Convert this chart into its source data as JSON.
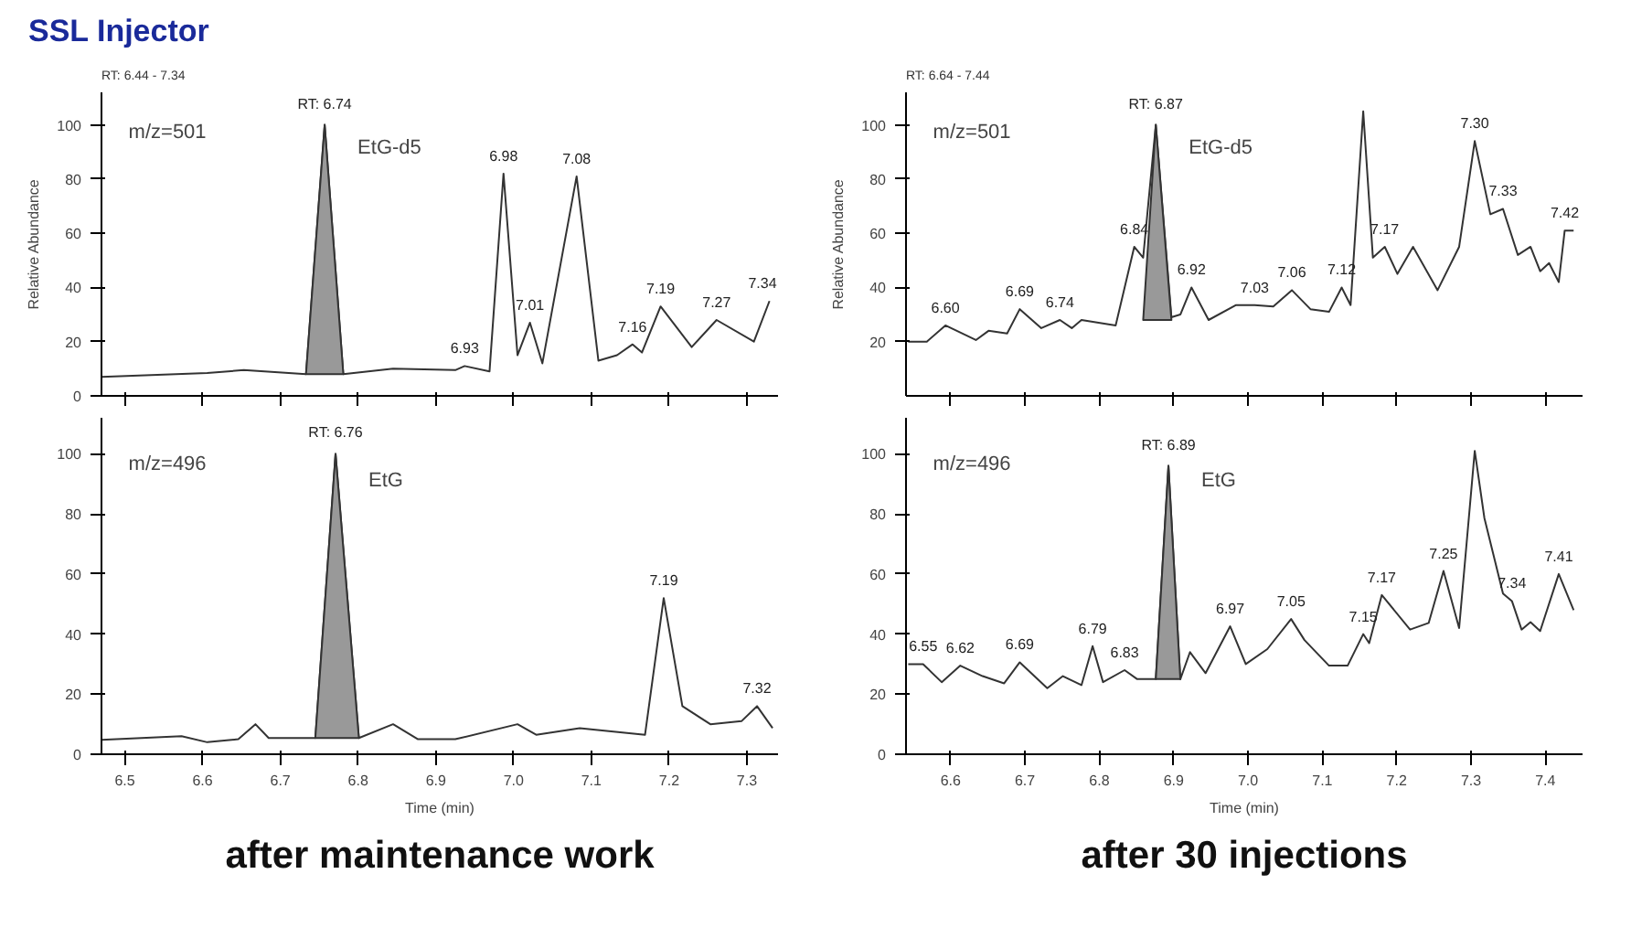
{
  "chart_data": [
    {
      "type": "line",
      "title": "SSL Injector",
      "subtitle": "RT: 6.44 - 7.34",
      "ylabel": "Relative Abundance",
      "xlim": [
        6.47,
        7.34
      ],
      "ylim": [
        0,
        112
      ],
      "xticks": [
        6.5,
        6.6,
        6.7,
        6.8,
        6.9,
        7.0,
        7.1,
        7.2,
        7.3
      ],
      "yticks": [
        0,
        20,
        40,
        60,
        80,
        100
      ],
      "tick_labels": "y",
      "grid": false,
      "annotations": [
        "m/z=501",
        "EtG-d5",
        {
          "text": "RT: 6.74",
          "x": 6.757,
          "y": 100
        },
        {
          "text": "6.93",
          "x": 6.937,
          "y": 11
        },
        {
          "text": "6.98",
          "x": 6.987,
          "y": 82
        },
        {
          "text": "7.01",
          "x": 7.021,
          "y": 27
        },
        {
          "text": "7.08",
          "x": 7.081,
          "y": 81
        },
        {
          "text": "7.16",
          "x": 7.153,
          "y": 19
        },
        {
          "text": "7.19",
          "x": 7.189,
          "y": 33
        },
        {
          "text": "7.27",
          "x": 7.261,
          "y": 28
        },
        {
          "text": "7.34",
          "x": 7.32,
          "y": 35
        }
      ],
      "series": [
        {
          "color": "#333333",
          "x": [
            6.47,
            6.606,
            6.653,
            6.733,
            6.757,
            6.781,
            6.845,
            6.925,
            6.937,
            6.969,
            6.987,
            7.005,
            7.021,
            7.037,
            7.081,
            7.109,
            7.133,
            7.153,
            7.165,
            7.189,
            7.229,
            7.261,
            7.309,
            7.329
          ],
          "values": [
            7,
            8.4,
            9.5,
            8,
            100,
            8,
            10,
            9.5,
            11,
            9,
            82,
            15,
            27,
            12,
            81,
            13,
            15,
            19,
            16,
            33,
            18,
            28,
            20,
            35
          ]
        },
        {
          "type": "area",
          "color": "#999999",
          "x": [
            6.733,
            6.757,
            6.781
          ],
          "values": [
            8,
            100,
            8
          ]
        }
      ]
    },
    {
      "type": "line",
      "subtitle": "RT: 6.64 - 7.44",
      "ylabel": "Relative Abundance",
      "xlim": [
        6.54,
        7.45
      ],
      "ylim": [
        0,
        112
      ],
      "xticks": [
        6.6,
        6.7,
        6.8,
        6.9,
        7.0,
        7.1,
        7.2,
        7.3,
        7.4
      ],
      "yticks": [
        20,
        40,
        60,
        80,
        100
      ],
      "tick_labels": "y",
      "grid": false,
      "annotations": [
        "m/z=501",
        "EtG-d5",
        {
          "text": "RT: 6.87",
          "x": 6.876,
          "y": 100
        },
        {
          "text": "6.60",
          "x": 6.593,
          "y": 26
        },
        {
          "text": "6.69",
          "x": 6.693,
          "y": 32
        },
        {
          "text": "6.74",
          "x": 6.747,
          "y": 28
        },
        {
          "text": "6.84",
          "x": 6.847,
          "y": 55
        },
        {
          "text": "6.92",
          "x": 6.924,
          "y": 40
        },
        {
          "text": "7.03",
          "x": 7.009,
          "y": 33.5
        },
        {
          "text": "7.06",
          "x": 7.059,
          "y": 39
        },
        {
          "text": "7.12",
          "x": 7.126,
          "y": 40
        },
        {
          "text": "7.17",
          "x": 7.184,
          "y": 55
        },
        {
          "text": "7.30",
          "x": 7.305,
          "y": 94
        },
        {
          "text": "7.33",
          "x": 7.343,
          "y": 69
        },
        {
          "text": "7.42",
          "x": 7.426,
          "y": 61
        }
      ],
      "series": [
        {
          "color": "#333333",
          "x": [
            6.543,
            6.568,
            6.593,
            6.634,
            6.651,
            6.676,
            6.693,
            6.722,
            6.747,
            6.763,
            6.776,
            6.822,
            6.847,
            6.859,
            6.876,
            6.897,
            6.909,
            6.924,
            6.947,
            6.984,
            7.009,
            7.034,
            7.059,
            7.084,
            7.109,
            7.126,
            7.138,
            7.155,
            7.168,
            7.184,
            7.201,
            7.222,
            7.255,
            7.284,
            7.305,
            7.326,
            7.343,
            7.363,
            7.38,
            7.393,
            7.405,
            7.418,
            7.426,
            7.438
          ],
          "values": [
            20,
            20,
            26,
            20.6,
            24,
            23,
            32,
            25,
            28,
            25,
            28,
            26,
            55,
            51,
            100,
            29,
            30,
            40,
            28,
            33.5,
            33.5,
            33,
            39,
            32,
            31,
            40,
            33.5,
            105,
            51,
            55,
            45,
            55,
            39,
            55,
            94,
            67,
            69,
            52,
            55,
            46,
            49,
            42,
            61,
            61
          ]
        },
        {
          "type": "area",
          "color": "#999999",
          "x": [
            6.859,
            6.876,
            6.897
          ],
          "values": [
            28,
            100,
            28
          ]
        }
      ]
    },
    {
      "type": "line",
      "xlabel": "Time (min)",
      "xlim": [
        6.47,
        7.34
      ],
      "ylim": [
        0,
        112
      ],
      "xticks": [
        6.5,
        6.6,
        6.7,
        6.8,
        6.9,
        {
          "value": 7.0,
          "label": "7.0"
        },
        7.1,
        7.2,
        7.3
      ],
      "yticks": [
        0,
        20,
        40,
        60,
        80,
        100
      ],
      "grid": false,
      "annotations": [
        "m/z=496",
        "EtG",
        "after maintenance work",
        {
          "text": "RT: 6.76",
          "x": 6.771,
          "y": 100
        },
        {
          "text": "7.19",
          "x": 7.193,
          "y": 52
        },
        {
          "text": "7.32",
          "x": 7.313,
          "y": 16
        }
      ],
      "series": [
        {
          "color": "#333333",
          "x": [
            6.47,
            6.573,
            6.606,
            6.646,
            6.668,
            6.685,
            6.745,
            6.771,
            6.801,
            6.845,
            6.877,
            6.925,
            7.005,
            7.029,
            7.085,
            7.169,
            7.193,
            7.217,
            7.253,
            7.293,
            7.313,
            7.333
          ],
          "values": [
            4.8,
            6,
            4,
            5,
            10,
            5.4,
            5.4,
            100,
            5.4,
            10,
            5,
            5,
            10,
            6.5,
            8.7,
            6.5,
            52,
            16,
            10,
            11,
            16,
            8.7
          ]
        },
        {
          "type": "area",
          "color": "#999999",
          "x": [
            6.745,
            6.771,
            6.801
          ],
          "values": [
            5.4,
            100,
            5.4
          ]
        }
      ]
    },
    {
      "type": "line",
      "xlabel": "Time (min)",
      "xlim": [
        6.54,
        7.45
      ],
      "ylim": [
        0,
        112
      ],
      "xticks": [
        6.6,
        6.7,
        6.8,
        6.9,
        {
          "value": 7.0,
          "label": "7.0"
        },
        7.1,
        7.2,
        7.3,
        7.4
      ],
      "yticks": [
        0,
        20,
        40,
        60,
        80,
        100
      ],
      "grid": false,
      "annotations": [
        "m/z=496",
        "EtG",
        "after 30 injections",
        {
          "text": "RT: 6.89",
          "x": 6.893,
          "y": 96
        },
        {
          "text": "6.55",
          "x": 6.563,
          "y": 30
        },
        {
          "text": "6.62",
          "x": 6.613,
          "y": 29.5
        },
        {
          "text": "6.69",
          "x": 6.693,
          "y": 30.6
        },
        {
          "text": "6.79",
          "x": 6.791,
          "y": 36
        },
        {
          "text": "6.83",
          "x": 6.834,
          "y": 28
        },
        {
          "text": "6.97",
          "x": 6.976,
          "y": 42.6
        },
        {
          "text": "7.05",
          "x": 7.058,
          "y": 45
        },
        {
          "text": "7.15",
          "x": 7.155,
          "y": 40
        },
        {
          "text": "7.17",
          "x": 7.18,
          "y": 53
        },
        {
          "text": "7.25",
          "x": 7.263,
          "y": 61
        },
        {
          "text": "7.34",
          "x": 7.355,
          "y": 51
        },
        {
          "text": "7.41",
          "x": 7.418,
          "y": 60
        }
      ],
      "series": [
        {
          "color": "#333333",
          "x": [
            6.543,
            6.563,
            6.588,
            6.613,
            6.643,
            6.672,
            6.693,
            6.73,
            6.751,
            6.776,
            6.791,
            6.805,
            6.834,
            6.851,
            6.876,
            6.893,
            6.909,
            6.922,
            6.943,
            6.976,
            6.997,
            7.026,
            7.058,
            7.076,
            7.109,
            7.134,
            7.155,
            7.163,
            7.18,
            7.218,
            7.243,
            7.263,
            7.284,
            7.305,
            7.318,
            7.343,
            7.355,
            7.368,
            7.38,
            7.393,
            7.418,
            7.438
          ],
          "values": [
            30,
            30,
            24,
            29.5,
            26,
            23.6,
            30.6,
            22,
            26,
            23,
            36,
            24,
            28,
            25,
            25,
            96,
            25,
            34,
            27,
            42.6,
            30,
            35,
            45,
            38,
            29.5,
            29.5,
            40,
            37,
            53,
            41.5,
            43.7,
            61,
            42,
            101,
            78.6,
            53.5,
            51,
            41.5,
            44,
            41,
            60,
            48
          ]
        },
        {
          "type": "area",
          "color": "#999999",
          "x": [
            6.876,
            6.893,
            6.909
          ],
          "values": [
            25,
            96,
            25
          ]
        }
      ]
    }
  ]
}
